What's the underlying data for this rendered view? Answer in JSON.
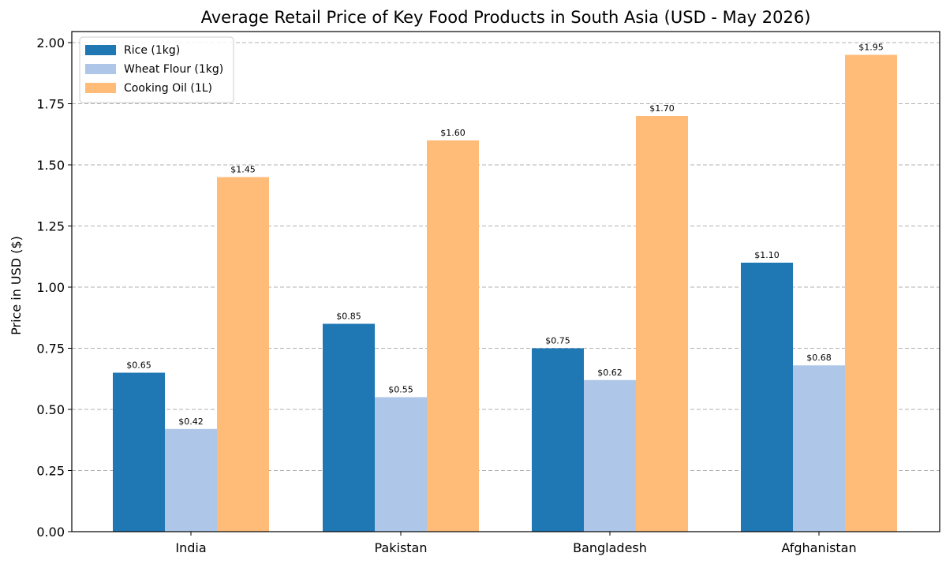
{
  "chart_data": {
    "type": "bar",
    "title": "Average Retail Price of Key Food Products in South Asia (USD - May 2026)",
    "xlabel": "",
    "ylabel": "Price in USD ($)",
    "categories": [
      "India",
      "Pakistan",
      "Bangladesh",
      "Afghanistan"
    ],
    "series": [
      {
        "name": "Rice (1kg)",
        "color": "#1f77b4",
        "values": [
          0.65,
          0.85,
          0.75,
          1.1
        ],
        "labels": [
          "$0.65",
          "$0.85",
          "$0.75",
          "$1.10"
        ]
      },
      {
        "name": "Wheat Flour (1kg)",
        "color": "#aec7e8",
        "values": [
          0.42,
          0.55,
          0.62,
          0.68
        ],
        "labels": [
          "$0.42",
          "$0.55",
          "$0.62",
          "$0.68"
        ]
      },
      {
        "name": "Cooking Oil (1L)",
        "color": "#ffbb78",
        "values": [
          1.45,
          1.6,
          1.7,
          1.95
        ],
        "labels": [
          "$1.45",
          "$1.60",
          "$1.70",
          "$1.95"
        ]
      }
    ],
    "ylim": [
      0,
      2.0
    ],
    "yticks": [
      0.0,
      0.25,
      0.5,
      0.75,
      1.0,
      1.25,
      1.5,
      1.75,
      2.0
    ],
    "ytick_labels": [
      "0.00",
      "0.25",
      "0.50",
      "0.75",
      "1.00",
      "1.25",
      "1.50",
      "1.75",
      "2.00"
    ],
    "grid": "y-dashed",
    "legend_position": "top-left"
  }
}
